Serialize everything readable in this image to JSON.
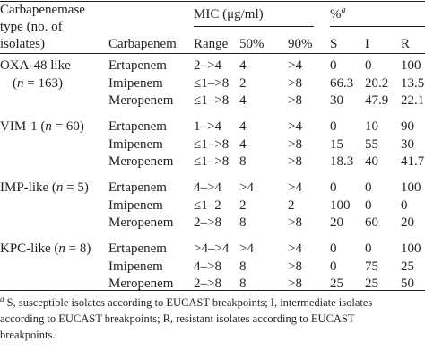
{
  "header": {
    "type_line1": "Carbapenemase",
    "type_line2": "type (no. of",
    "type_line3": "isolates)",
    "carbapenem": "Carbapenem",
    "mic_group": "MIC (μg/ml)",
    "pct_group": "%",
    "pct_group_sup": "a",
    "range": "Range",
    "p50": "50%",
    "p90": "90%",
    "s": "S",
    "i": "I",
    "r": "R"
  },
  "groups": [
    {
      "label_line1": "OXA-48 like",
      "label_line2_prefix": "(",
      "label_n": "n",
      "label_line2_suffix": " = 163)",
      "rows": [
        {
          "carbapenem": "Ertapenem",
          "range": "2–>4",
          "p50": "4",
          "p90": ">4",
          "s": "0",
          "i": "0",
          "r": "100"
        },
        {
          "carbapenem": "Imipenem",
          "range": "≤1–>8",
          "p50": "2",
          "p90": ">8",
          "s": "66.3",
          "i": "20.2",
          "r": "13.5"
        },
        {
          "carbapenem": "Meropenem",
          "range": "≤1–>8",
          "p50": "4",
          "p90": ">8",
          "s": "30",
          "i": "47.9",
          "r": "22.1"
        }
      ]
    },
    {
      "label_prefix": "VIM-1 (",
      "label_n": "n",
      "label_suffix": " = 60)",
      "rows": [
        {
          "carbapenem": "Ertapenem",
          "range": "1–>4",
          "p50": "4",
          "p90": ">4",
          "s": "0",
          "i": "10",
          "r": "90"
        },
        {
          "carbapenem": "Imipenem",
          "range": "≤1–>8",
          "p50": "4",
          "p90": ">8",
          "s": "15",
          "i": "55",
          "r": "30"
        },
        {
          "carbapenem": "Meropenem",
          "range": "≤1–>8",
          "p50": "8",
          "p90": ">8",
          "s": "18.3",
          "i": "40",
          "r": "41.7"
        }
      ]
    },
    {
      "label_prefix": "IMP-like (",
      "label_n": "n",
      "label_suffix": " = 5)",
      "rows": [
        {
          "carbapenem": "Ertapenem",
          "range": "4–>4",
          "p50": ">4",
          "p90": ">4",
          "s": "0",
          "i": "0",
          "r": "100"
        },
        {
          "carbapenem": "Imipenem",
          "range": "≤1–2",
          "p50": "2",
          "p90": "2",
          "s": "100",
          "i": "0",
          "r": "0"
        },
        {
          "carbapenem": "Meropenem",
          "range": "2–>8",
          "p50": "8",
          "p90": ">8",
          "s": "20",
          "i": "60",
          "r": "20"
        }
      ]
    },
    {
      "label_prefix": "KPC-like (",
      "label_n": "n",
      "label_suffix": " = 8)",
      "rows": [
        {
          "carbapenem": "Ertapenem",
          "range": ">4–>4",
          "p50": ">4",
          "p90": ">4",
          "s": "0",
          "i": "0",
          "r": "100"
        },
        {
          "carbapenem": "Imipenem",
          "range": "4–>8",
          "p50": "8",
          "p90": ">8",
          "s": "0",
          "i": "75",
          "r": "25"
        },
        {
          "carbapenem": "Meropenem",
          "range": "2–>8",
          "p50": "8",
          "p90": ">8",
          "s": "25",
          "i": "25",
          "r": "50"
        }
      ]
    }
  ],
  "footnote": {
    "marker": "a",
    "line1": " S, susceptible isolates according to EUCAST breakpoints; I, intermediate isolates",
    "line2": "according to EUCAST breakpoints; R, resistant isolates according to EUCAST",
    "line3": "breakpoints."
  }
}
